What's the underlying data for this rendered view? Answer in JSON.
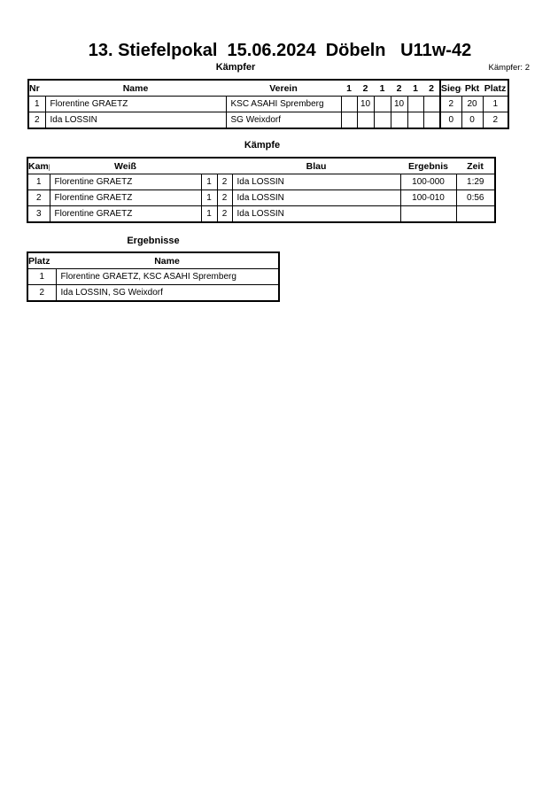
{
  "title": "13. Stiefelpokal  15.06.2024  Döbeln   U11w-42",
  "fighters": {
    "heading": "Kämpfer",
    "count_label": "Kämpfer: 2",
    "headers": [
      "Nr",
      "Name",
      "Verein",
      "1",
      "2",
      "1",
      "2",
      "1",
      "2",
      "Siege",
      "Pkt",
      "Platz"
    ],
    "rows": [
      {
        "nr": "1",
        "name": "Florentine GRAETZ",
        "club": "KSC ASAHI Spremberg",
        "s": [
          "",
          "10",
          "",
          "10",
          "",
          ""
        ],
        "wins": "2",
        "points": "20",
        "place": "1"
      },
      {
        "nr": "2",
        "name": "Ida LOSSIN",
        "club": "SG Weixdorf",
        "s": [
          "",
          "",
          "",
          "",
          "",
          ""
        ],
        "wins": "0",
        "points": "0",
        "place": "2"
      }
    ]
  },
  "fights": {
    "heading": "Kämpfe",
    "headers": [
      "Kampf",
      "Weiß",
      "",
      "",
      "Blau",
      "Ergebnis",
      "Zeit"
    ],
    "rows": [
      {
        "no": "1",
        "white": "Florentine GRAETZ",
        "w": "1",
        "b": "2",
        "blue": "Ida LOSSIN",
        "result": "100-000",
        "time": "1:29"
      },
      {
        "no": "2",
        "white": "Florentine GRAETZ",
        "w": "1",
        "b": "2",
        "blue": "Ida LOSSIN",
        "result": "100-010",
        "time": "0:56"
      },
      {
        "no": "3",
        "white": "Florentine GRAETZ",
        "w": "1",
        "b": "2",
        "blue": "Ida LOSSIN",
        "result": "",
        "time": ""
      }
    ]
  },
  "results": {
    "heading": "Ergebnisse",
    "headers": [
      "Platz",
      "Name"
    ],
    "rows": [
      {
        "place": "1",
        "name": "Florentine GRAETZ, KSC ASAHI Spremberg"
      },
      {
        "place": "2",
        "name": "Ida LOSSIN, SG Weixdorf"
      }
    ]
  }
}
